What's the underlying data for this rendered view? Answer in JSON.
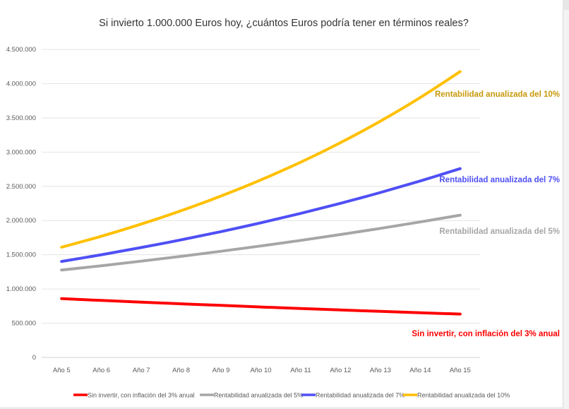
{
  "chart_data": {
    "type": "line",
    "title": "Si invierto 1.000.000 Euros hoy, ¿cuántos Euros podría tener en términos reales?",
    "categories": [
      "Año 5",
      "Año 6",
      "Año 7",
      "Año 8",
      "Año 9",
      "Año 10",
      "Año 11",
      "Año 12",
      "Año 13",
      "Año 14",
      "Año 15"
    ],
    "y_ticks": [
      "0",
      "500.000",
      "1.000.000",
      "1.500.000",
      "2.000.000",
      "2.500.000",
      "3.000.000",
      "3.500.000",
      "4.000.000",
      "4.500.000"
    ],
    "ylim": [
      0,
      4500000
    ],
    "grid": true,
    "legend_position": "bottom",
    "series": [
      {
        "name": "Sin invertir, con inflación del 3% anual",
        "label": "Sin invertir, con inflación del 3% anual",
        "color": "#ff0000",
        "values": [
          858734,
          832972,
          807983,
          783743,
          760231,
          737424,
          715301,
          693842,
          673027,
          652836,
          633251
        ]
      },
      {
        "name": "Rentabilidad anualizada del 5%",
        "label": "Rentabilidad anualizada del 5%",
        "color": "#a6a6a6",
        "values": [
          1276282,
          1340096,
          1407100,
          1477455,
          1551328,
          1628895,
          1710339,
          1795856,
          1885649,
          1979932,
          2078928
        ]
      },
      {
        "name": "Rentabilidad anualizada del 7%",
        "label": "Rentabilidad anualizada del 7%",
        "color": "#4f4ff5",
        "values": [
          1402552,
          1500730,
          1605781,
          1718186,
          1838459,
          1967151,
          2104852,
          2252192,
          2409845,
          2578534,
          2759032
        ]
      },
      {
        "name": "Rentabilidad anualizada del 10%",
        "label": "Rentabilidad anualizada del 10%",
        "color": "#ffc000",
        "label_color": "#c8980a",
        "values": [
          1610510,
          1771561,
          1948717,
          2143589,
          2357948,
          2593742,
          2853117,
          3138428,
          3452271,
          3797498,
          4177248
        ]
      }
    ]
  }
}
